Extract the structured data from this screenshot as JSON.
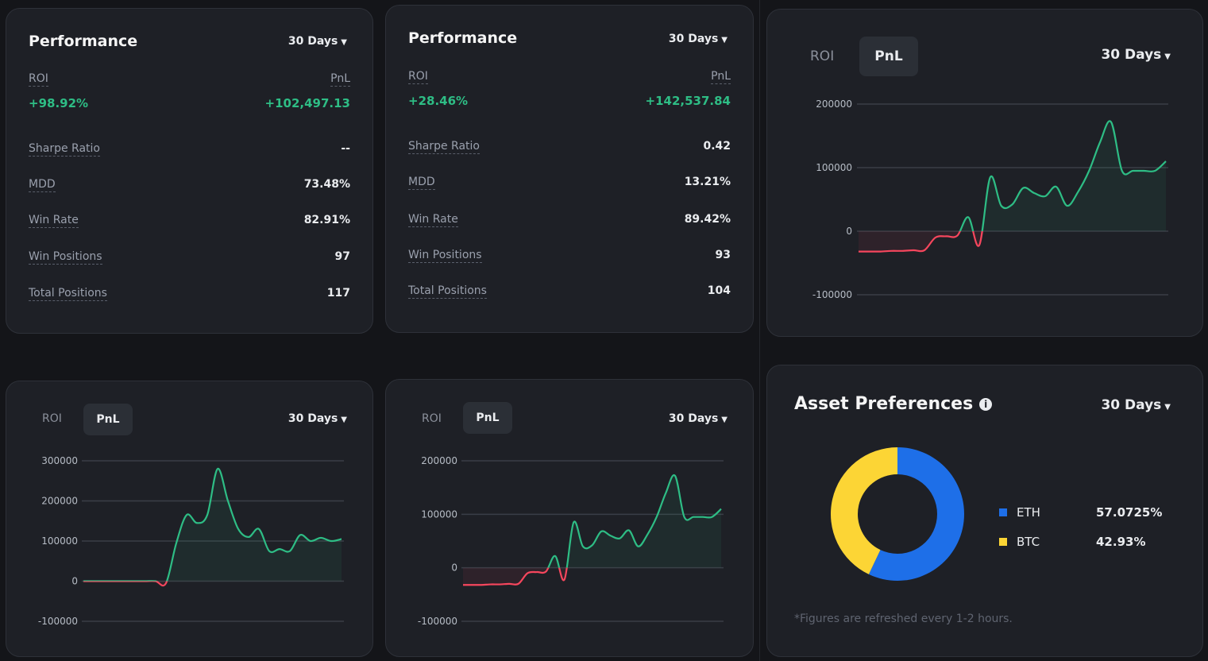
{
  "perf1": {
    "title": "Performance",
    "period": "30 Days",
    "roi_label": "ROI",
    "pnl_label": "PnL",
    "roi_value": "+98.92%",
    "pnl_value": "+102,497.13",
    "stats": [
      {
        "label": "Sharpe Ratio",
        "value": "--"
      },
      {
        "label": "MDD",
        "value": "73.48%"
      },
      {
        "label": "Win Rate",
        "value": "82.91%"
      },
      {
        "label": "Win Positions",
        "value": "97"
      },
      {
        "label": "Total Positions",
        "value": "117"
      }
    ]
  },
  "perf2": {
    "title": "Performance",
    "period": "30 Days",
    "roi_label": "ROI",
    "pnl_label": "PnL",
    "roi_value": "+28.46%",
    "pnl_value": "+142,537.84",
    "stats": [
      {
        "label": "Sharpe Ratio",
        "value": "0.42"
      },
      {
        "label": "MDD",
        "value": "13.21%"
      },
      {
        "label": "Win Rate",
        "value": "89.42%"
      },
      {
        "label": "Win Positions",
        "value": "93"
      },
      {
        "label": "Total Positions",
        "value": "104"
      }
    ]
  },
  "chart_tr": {
    "tab_roi": "ROI",
    "tab_pnl": "PnL",
    "period": "30 Days"
  },
  "chart_bl": {
    "tab_roi": "ROI",
    "tab_pnl": "PnL",
    "period": "30 Days"
  },
  "chart_bm": {
    "tab_roi": "ROI",
    "tab_pnl": "PnL",
    "period": "30 Days"
  },
  "assets": {
    "title": "Asset Preferences",
    "period": "30 Days",
    "items": [
      {
        "name": "ETH",
        "pct": "57.0725%",
        "color": "#1e6fe8"
      },
      {
        "name": "BTC",
        "pct": "42.93%",
        "color": "#fcd535"
      }
    ],
    "note": "*Figures are refreshed every 1-2 hours."
  },
  "colors": {
    "positive": "#2ebd85",
    "negative": "#f6465d"
  },
  "chart_data": [
    {
      "type": "line",
      "chart": "chart_tr",
      "series_label": "PnL",
      "ylim": [
        -100000,
        200000
      ],
      "yticks": [
        200000,
        100000,
        0,
        -100000
      ],
      "y": [
        -32000,
        -32000,
        -32000,
        -31000,
        -31000,
        -30000,
        -30000,
        -10000,
        -8000,
        -7000,
        22000,
        -22000,
        85000,
        40000,
        42000,
        68000,
        60000,
        55000,
        70000,
        40000,
        62000,
        95000,
        140000,
        172000,
        95000,
        95000,
        95000,
        95000,
        110000
      ]
    },
    {
      "type": "line",
      "chart": "chart_bl",
      "series_label": "PnL",
      "ylim": [
        -100000,
        300000
      ],
      "yticks": [
        300000,
        200000,
        100000,
        0,
        -100000
      ],
      "y": [
        0,
        0,
        0,
        0,
        0,
        0,
        0,
        0,
        -5000,
        95000,
        165000,
        145000,
        165000,
        280000,
        200000,
        130000,
        110000,
        130000,
        75000,
        80000,
        75000,
        115000,
        100000,
        108000,
        100000,
        105000
      ]
    },
    {
      "type": "line",
      "chart": "chart_bm",
      "series_label": "PnL",
      "ylim": [
        -100000,
        200000
      ],
      "yticks": [
        200000,
        100000,
        0,
        -100000
      ],
      "y": [
        -32000,
        -32000,
        -32000,
        -31000,
        -31000,
        -30000,
        -30000,
        -10000,
        -8000,
        -7000,
        22000,
        -22000,
        85000,
        40000,
        42000,
        68000,
        60000,
        55000,
        70000,
        40000,
        62000,
        95000,
        140000,
        172000,
        95000,
        95000,
        95000,
        95000,
        110000
      ]
    },
    {
      "type": "pie",
      "chart": "assets",
      "labels": [
        "ETH",
        "BTC"
      ],
      "values": [
        57.0725,
        42.93
      ]
    }
  ]
}
